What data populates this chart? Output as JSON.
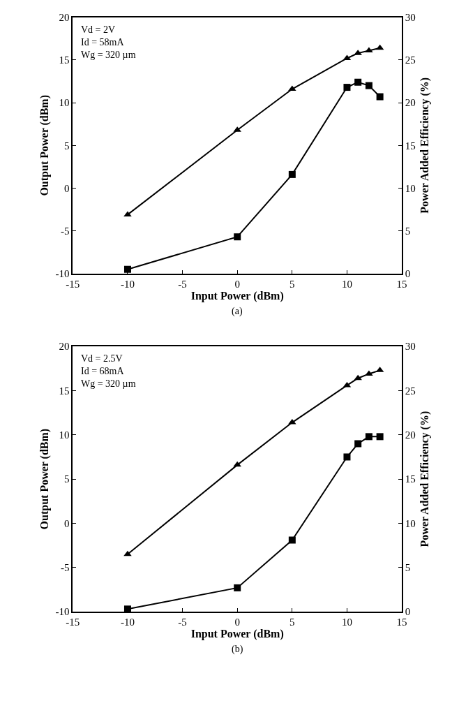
{
  "chart_data": [
    {
      "type": "line",
      "xlabel": "Input Power (dBm)",
      "ylabel": "Output Power (dBm)",
      "y2label": "Power Added Efficiency (%)",
      "annotations": [
        "Vd = 2V\nId = 58mA\nWg = 320 µm",
        "(a)"
      ],
      "x": [
        -10,
        0,
        5,
        10,
        11,
        12,
        13
      ],
      "series": [
        {
          "marker": "triangle",
          "color": "#000000",
          "values": [
            -3.1,
            6.8,
            11.6,
            15.2,
            15.8,
            16.1,
            16.4
          ]
        },
        {
          "marker": "square",
          "color": "#000000",
          "axis": "y2",
          "values": [
            0.5,
            4.3,
            11.6,
            21.8,
            22.4,
            22.0,
            20.7
          ]
        }
      ],
      "xlim": [
        -15,
        15
      ],
      "xticks": [
        -15,
        -10,
        -5,
        0,
        5,
        10,
        15
      ],
      "ylim": [
        -10,
        20
      ],
      "yticks": [
        -10,
        -5,
        0,
        5,
        10,
        15,
        20
      ],
      "y2lim": [
        0,
        30
      ],
      "y2ticks": [
        0,
        5,
        10,
        15,
        20,
        25,
        30
      ]
    },
    {
      "type": "line",
      "xlabel": "Input Power (dBm)",
      "ylabel": "Output Power (dBm)",
      "y2label": "Power Added Efficiency (%)",
      "annotations": [
        "Vd = 2.5V\nId = 68mA\nWg = 320 µm",
        "(b)"
      ],
      "x": [
        -10,
        0,
        5,
        10,
        11,
        12,
        13
      ],
      "series": [
        {
          "marker": "triangle",
          "color": "#000000",
          "values": [
            -3.5,
            6.6,
            11.4,
            15.6,
            16.4,
            16.9,
            17.3
          ]
        },
        {
          "marker": "square",
          "color": "#000000",
          "axis": "y2",
          "values": [
            0.3,
            2.7,
            8.1,
            17.5,
            19.0,
            19.8,
            19.8
          ]
        }
      ],
      "xlim": [
        -15,
        15
      ],
      "xticks": [
        -15,
        -10,
        -5,
        0,
        5,
        10,
        15
      ],
      "ylim": [
        -10,
        20
      ],
      "yticks": [
        -10,
        -5,
        0,
        5,
        10,
        15,
        20
      ],
      "y2lim": [
        0,
        30
      ],
      "y2ticks": [
        0,
        5,
        10,
        15,
        20,
        25,
        30
      ]
    }
  ]
}
